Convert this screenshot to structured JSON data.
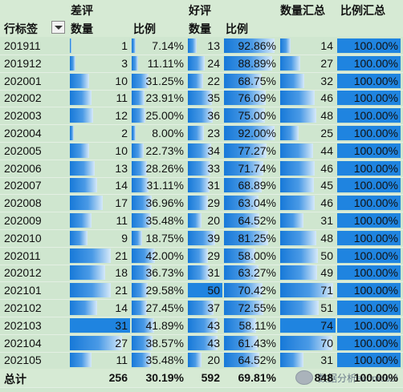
{
  "header": {
    "group_bad": "差评",
    "group_good": "好评",
    "qty_total": "数量汇总",
    "ratio_total": "比例汇总",
    "row_labels": "行标签",
    "qty": "数量",
    "ratio": "比例"
  },
  "rows": [
    {
      "label": "201911",
      "bad_qty": 1,
      "bad_pct": "7.14%",
      "good_qty": 13,
      "good_pct": "92.86%",
      "total_qty": 14,
      "total_pct": "100.00%"
    },
    {
      "label": "201912",
      "bad_qty": 3,
      "bad_pct": "11.11%",
      "good_qty": 24,
      "good_pct": "88.89%",
      "total_qty": 27,
      "total_pct": "100.00%"
    },
    {
      "label": "202001",
      "bad_qty": 10,
      "bad_pct": "31.25%",
      "good_qty": 22,
      "good_pct": "68.75%",
      "total_qty": 32,
      "total_pct": "100.00%"
    },
    {
      "label": "202002",
      "bad_qty": 11,
      "bad_pct": "23.91%",
      "good_qty": 35,
      "good_pct": "76.09%",
      "total_qty": 46,
      "total_pct": "100.00%"
    },
    {
      "label": "202003",
      "bad_qty": 12,
      "bad_pct": "25.00%",
      "good_qty": 36,
      "good_pct": "75.00%",
      "total_qty": 48,
      "total_pct": "100.00%"
    },
    {
      "label": "202004",
      "bad_qty": 2,
      "bad_pct": "8.00%",
      "good_qty": 23,
      "good_pct": "92.00%",
      "total_qty": 25,
      "total_pct": "100.00%"
    },
    {
      "label": "202005",
      "bad_qty": 10,
      "bad_pct": "22.73%",
      "good_qty": 34,
      "good_pct": "77.27%",
      "total_qty": 44,
      "total_pct": "100.00%"
    },
    {
      "label": "202006",
      "bad_qty": 13,
      "bad_pct": "28.26%",
      "good_qty": 33,
      "good_pct": "71.74%",
      "total_qty": 46,
      "total_pct": "100.00%"
    },
    {
      "label": "202007",
      "bad_qty": 14,
      "bad_pct": "31.11%",
      "good_qty": 31,
      "good_pct": "68.89%",
      "total_qty": 45,
      "total_pct": "100.00%"
    },
    {
      "label": "202008",
      "bad_qty": 17,
      "bad_pct": "36.96%",
      "good_qty": 29,
      "good_pct": "63.04%",
      "total_qty": 46,
      "total_pct": "100.00%"
    },
    {
      "label": "202009",
      "bad_qty": 11,
      "bad_pct": "35.48%",
      "good_qty": 20,
      "good_pct": "64.52%",
      "total_qty": 31,
      "total_pct": "100.00%"
    },
    {
      "label": "202010",
      "bad_qty": 9,
      "bad_pct": "18.75%",
      "good_qty": 39,
      "good_pct": "81.25%",
      "total_qty": 48,
      "total_pct": "100.00%"
    },
    {
      "label": "202011",
      "bad_qty": 21,
      "bad_pct": "42.00%",
      "good_qty": 29,
      "good_pct": "58.00%",
      "total_qty": 50,
      "total_pct": "100.00%"
    },
    {
      "label": "202012",
      "bad_qty": 18,
      "bad_pct": "36.73%",
      "good_qty": 31,
      "good_pct": "63.27%",
      "total_qty": 49,
      "total_pct": "100.00%"
    },
    {
      "label": "202101",
      "bad_qty": 21,
      "bad_pct": "29.58%",
      "good_qty": 50,
      "good_pct": "70.42%",
      "total_qty": 71,
      "total_pct": "100.00%"
    },
    {
      "label": "202102",
      "bad_qty": 14,
      "bad_pct": "27.45%",
      "good_qty": 37,
      "good_pct": "72.55%",
      "total_qty": 51,
      "total_pct": "100.00%"
    },
    {
      "label": "202103",
      "bad_qty": 31,
      "bad_pct": "41.89%",
      "good_qty": 43,
      "good_pct": "58.11%",
      "total_qty": 74,
      "total_pct": "100.00%"
    },
    {
      "label": "202104",
      "bad_qty": 27,
      "bad_pct": "38.57%",
      "good_qty": 43,
      "good_pct": "61.43%",
      "total_qty": 70,
      "total_pct": "100.00%"
    },
    {
      "label": "202105",
      "bad_qty": 11,
      "bad_pct": "35.48%",
      "good_qty": 20,
      "good_pct": "64.52%",
      "total_qty": 31,
      "total_pct": "100.00%"
    }
  ],
  "totals": {
    "label": "总计",
    "bad_qty": 256,
    "bad_pct": "30.19%",
    "good_qty": 592,
    "good_pct": "69.81%",
    "total_qty": 848,
    "total_pct": "100.00%"
  },
  "watermark": {
    "text": "数据分析ecomcool"
  },
  "colors": {
    "bar": "#1779d8",
    "bar_fade": "#d6e9f9",
    "background": "#cfe6cf"
  }
}
